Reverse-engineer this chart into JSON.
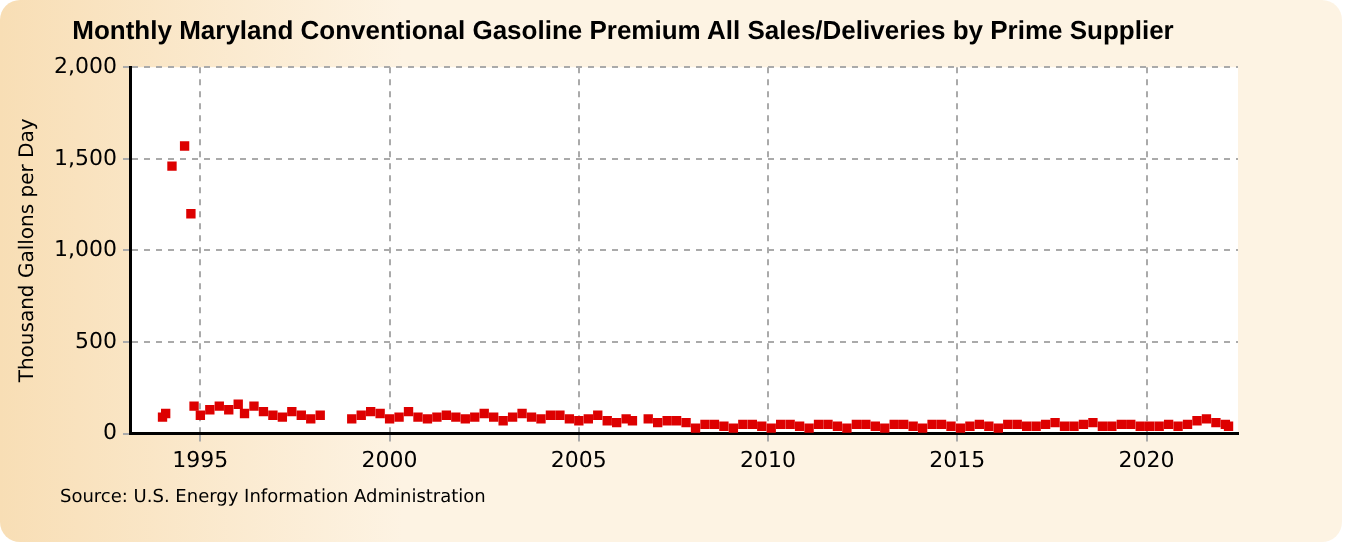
{
  "chart_data": {
    "type": "scatter",
    "title": "Monthly Maryland Conventional Gasoline Premium All Sales/Deliveries by Prime Supplier",
    "ylabel": "Thousand Gallons per Day",
    "annotations": [
      "Source: U.S. Energy Information Administration"
    ],
    "x": [
      "1994-01",
      "1994-02",
      "1994-04",
      "1994-08",
      "1994-10",
      "1994-11",
      "1995-01",
      "1995-04",
      "1995-07",
      "1995-10",
      "1996-01",
      "1996-03",
      "1996-06",
      "1996-09",
      "1996-12",
      "1997-03",
      "1997-06",
      "1997-09",
      "1997-12",
      "1998-03",
      "1999-01",
      "1999-04",
      "1999-07",
      "1999-10",
      "2000-01",
      "2000-04",
      "2000-07",
      "2000-10",
      "2001-01",
      "2001-04",
      "2001-07",
      "2001-10",
      "2002-01",
      "2002-04",
      "2002-07",
      "2002-10",
      "2003-01",
      "2003-04",
      "2003-07",
      "2003-10",
      "2004-01",
      "2004-04",
      "2004-07",
      "2004-10",
      "2005-01",
      "2005-04",
      "2005-07",
      "2005-10",
      "2006-01",
      "2006-04",
      "2006-06",
      "2006-11",
      "2007-02",
      "2007-05",
      "2007-08",
      "2007-11",
      "2008-02",
      "2008-05",
      "2008-08",
      "2008-11",
      "2009-02",
      "2009-05",
      "2009-08",
      "2009-11",
      "2010-02",
      "2010-05",
      "2010-08",
      "2010-11",
      "2011-02",
      "2011-05",
      "2011-08",
      "2011-11",
      "2012-02",
      "2012-05",
      "2012-08",
      "2012-11",
      "2013-02",
      "2013-05",
      "2013-08",
      "2013-11",
      "2014-02",
      "2014-05",
      "2014-08",
      "2014-11",
      "2015-02",
      "2015-05",
      "2015-08",
      "2015-11",
      "2016-02",
      "2016-05",
      "2016-08",
      "2016-11",
      "2017-02",
      "2017-05",
      "2017-08",
      "2017-11",
      "2018-02",
      "2018-05",
      "2018-08",
      "2018-11",
      "2019-02",
      "2019-05",
      "2019-08",
      "2019-11",
      "2020-02",
      "2020-05",
      "2020-08",
      "2020-11",
      "2021-02",
      "2021-05",
      "2021-08",
      "2021-11",
      "2022-02",
      "2022-03"
    ],
    "series": [
      {
        "color": "#dd0000",
        "values": [
          90,
          110,
          1460,
          1570,
          1200,
          150,
          100,
          130,
          150,
          130,
          160,
          110,
          150,
          120,
          100,
          90,
          120,
          100,
          80,
          100,
          80,
          100,
          120,
          110,
          80,
          90,
          120,
          90,
          80,
          90,
          100,
          90,
          80,
          90,
          110,
          90,
          70,
          90,
          110,
          90,
          80,
          100,
          100,
          80,
          70,
          80,
          100,
          70,
          60,
          80,
          70,
          80,
          60,
          70,
          70,
          60,
          30,
          50,
          50,
          40,
          30,
          50,
          50,
          40,
          30,
          50,
          50,
          40,
          30,
          50,
          50,
          40,
          30,
          50,
          50,
          40,
          30,
          50,
          50,
          40,
          30,
          50,
          50,
          40,
          30,
          40,
          50,
          40,
          30,
          50,
          50,
          40,
          40,
          50,
          60,
          40,
          40,
          50,
          60,
          40,
          40,
          50,
          50,
          40,
          40,
          40,
          50,
          40,
          50,
          70,
          80,
          60,
          50,
          40
        ]
      }
    ],
    "xlim": [
      "1993-03",
      "2022-06"
    ],
    "xticks": [
      {
        "value": "1995-01",
        "label": "1995"
      },
      {
        "value": "2000-01",
        "label": "2000"
      },
      {
        "value": "2005-01",
        "label": "2005"
      },
      {
        "value": "2010-01",
        "label": "2010"
      },
      {
        "value": "2015-01",
        "label": "2015"
      },
      {
        "value": "2020-01",
        "label": "2020"
      }
    ],
    "ylim": [
      0,
      2000
    ],
    "yticks": [
      {
        "value": 0,
        "label": "0"
      },
      {
        "value": 500,
        "label": "500"
      },
      {
        "value": 1000,
        "label": "1,000"
      },
      {
        "value": 1500,
        "label": "1,500"
      },
      {
        "value": 2000,
        "label": "2,000"
      }
    ],
    "grid": true,
    "legend": false,
    "marker": "square"
  }
}
